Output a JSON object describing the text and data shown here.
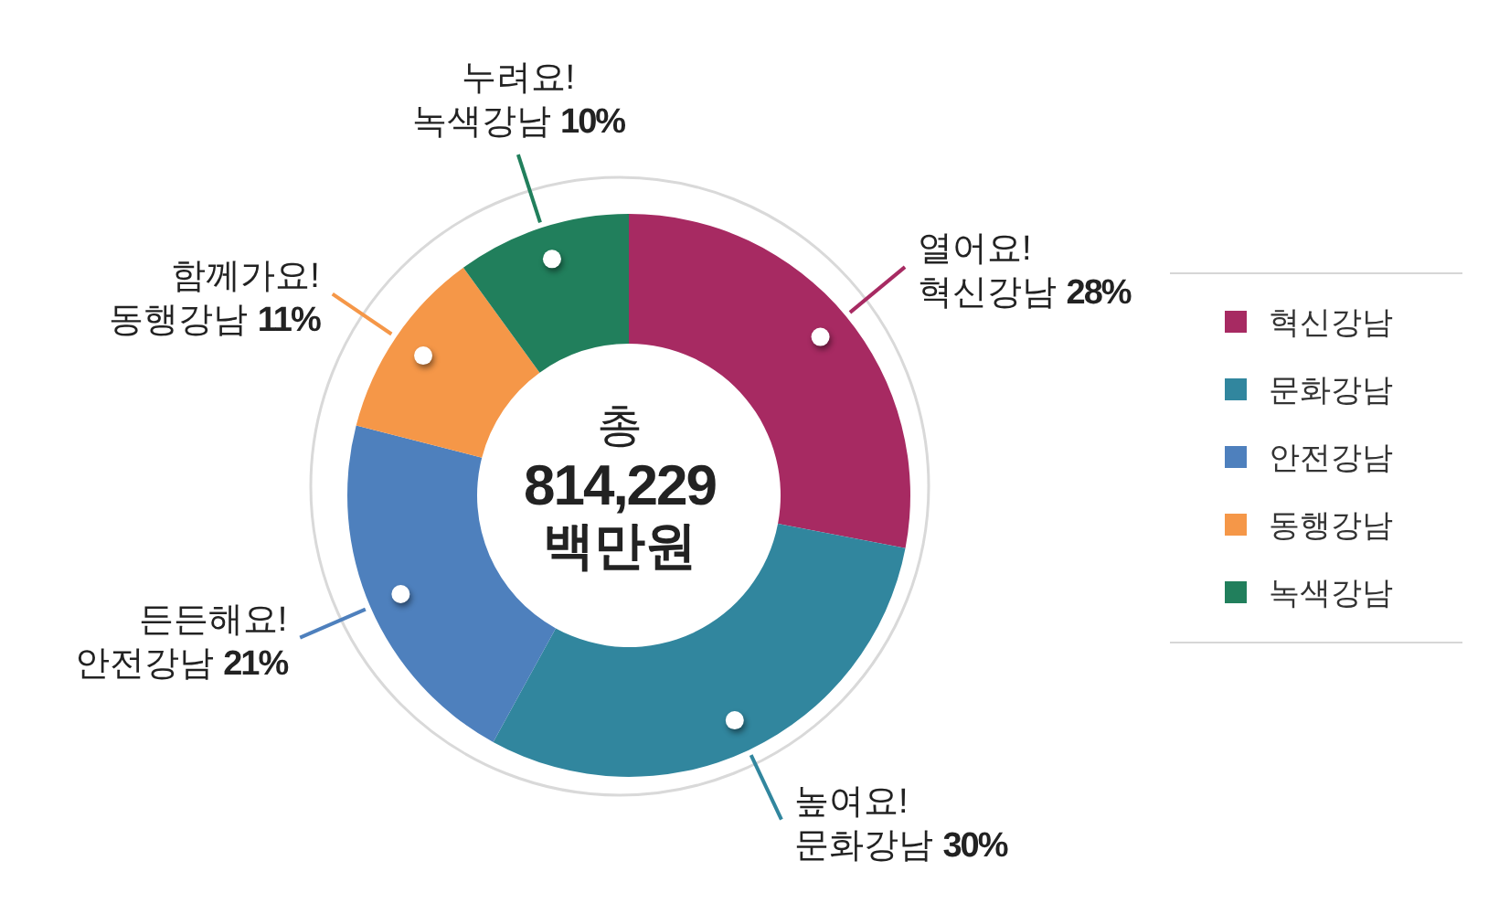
{
  "chart_data": {
    "type": "donut",
    "title": "총 814,229 백만원",
    "categories": [
      "혁신강남",
      "문화강남",
      "안전강남",
      "동행강남",
      "녹색강남"
    ],
    "values": [
      28,
      30,
      21,
      11,
      10
    ],
    "value_labels": [
      "28%",
      "30%",
      "21%",
      "11%",
      "10%"
    ],
    "colors": [
      "#a72a62",
      "#31869e",
      "#4e80bd",
      "#f59748",
      "#217f5c"
    ],
    "annotations": [
      "열어요!",
      "높여요!",
      "든든해요!",
      "함께가요!",
      "누려요!"
    ],
    "legend": "right"
  }
}
